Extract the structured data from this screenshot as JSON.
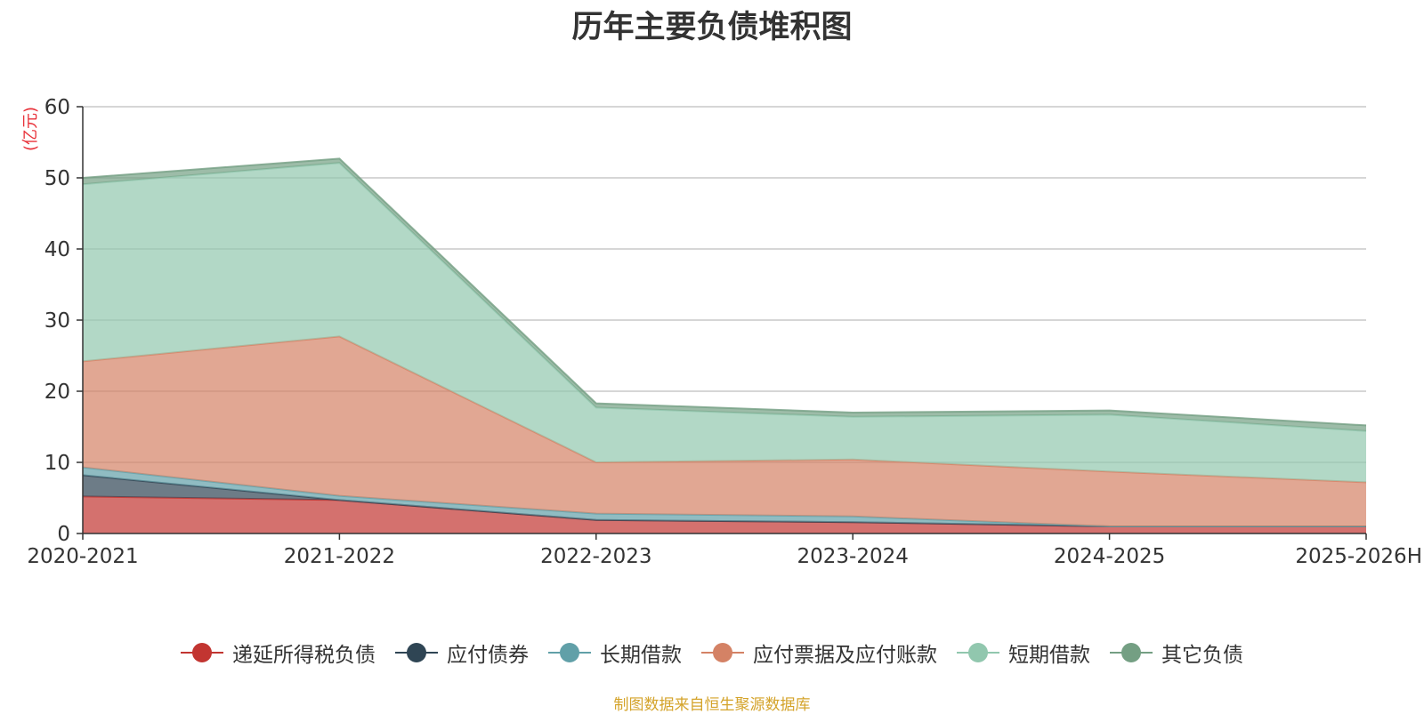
{
  "chart_data": {
    "type": "area",
    "stacked": true,
    "title": "历年主要负债堆积图",
    "ylabel": "(亿元)",
    "xlabel": "",
    "ylim": [
      0,
      60
    ],
    "yticks": [
      0,
      10,
      20,
      30,
      40,
      50,
      60
    ],
    "grid": true,
    "legend": "bottom",
    "categories": [
      "2020-2021",
      "2021-2022",
      "2022-2023",
      "2023-2024",
      "2024-2025",
      "2025-2026H"
    ],
    "series": [
      {
        "name": "递延所得税负债",
        "color": "#c23531",
        "values": [
          5.2,
          4.7,
          1.9,
          1.6,
          1.0,
          1.0
        ]
      },
      {
        "name": "应付债券",
        "color": "#2f4554",
        "values": [
          3.0,
          0.0,
          0.0,
          0.0,
          0.0,
          0.0
        ]
      },
      {
        "name": "长期借款",
        "color": "#61a0a8",
        "values": [
          1.1,
          0.6,
          0.9,
          0.8,
          0.0,
          0.0
        ]
      },
      {
        "name": "应付票据及应付账款",
        "color": "#d48265",
        "values": [
          14.9,
          22.4,
          7.2,
          8.0,
          7.7,
          6.2
        ]
      },
      {
        "name": "短期借款",
        "color": "#91c7ae",
        "values": [
          24.9,
          24.4,
          7.7,
          6.0,
          8.0,
          7.2
        ]
      },
      {
        "name": "其它负债",
        "color": "#749f83",
        "values": [
          0.9,
          0.6,
          0.6,
          0.6,
          0.6,
          0.8
        ]
      }
    ]
  },
  "source_text": "制图数据来自恒生聚源数据库"
}
